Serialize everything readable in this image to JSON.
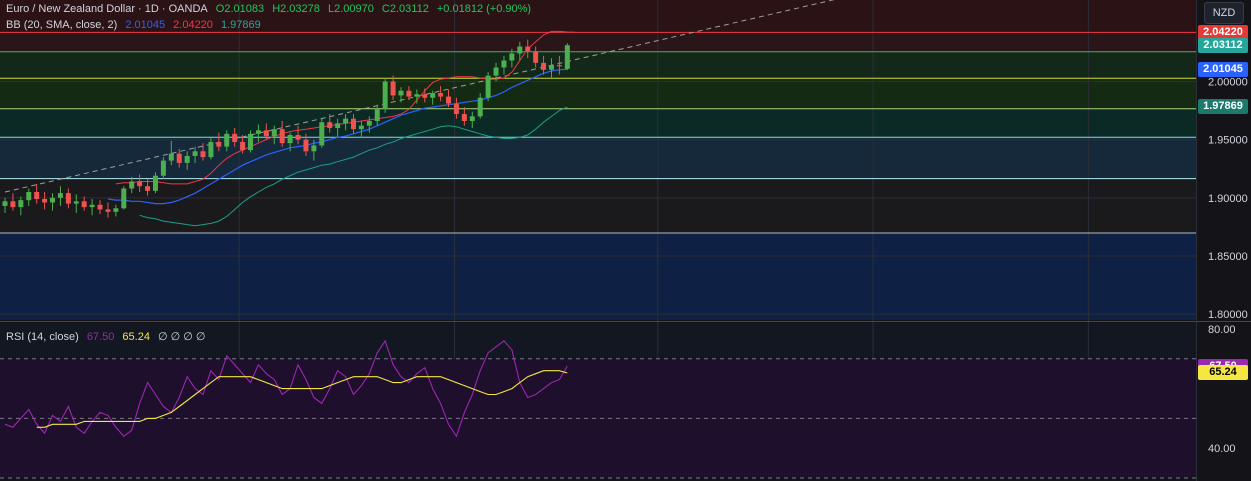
{
  "header": {
    "symbol": "Euro / New Zealand Dollar · 1D · OANDA",
    "open": "O2.01083",
    "high": "H2.03278",
    "low": "L2.00970",
    "close": "C2.03112",
    "change": "+0.01812 (+0.90%)"
  },
  "bb_legend": {
    "label": "BB (20, SMA, close, 2)",
    "basis": "2.01045",
    "upper": "2.04220",
    "lower": "1.97869"
  },
  "rsi_legend": {
    "label": "RSI (14, close)",
    "rsi": "67.50",
    "ma": "65.24",
    "extra": "∅ ∅ ∅ ∅"
  },
  "currency_button": "NZD",
  "price_tags": [
    {
      "text": "2.04220",
      "value": 2.0422,
      "bg": "#e53935",
      "fg": "#ffffff"
    },
    {
      "text": "2.03112",
      "value": 2.03112,
      "bg": "#26a69a",
      "fg": "#ffffff"
    },
    {
      "text": "2.01045",
      "value": 2.01045,
      "bg": "#2962ff",
      "fg": "#ffffff"
    },
    {
      "text": "1.97869",
      "value": 1.97869,
      "bg": "#1b7a6c",
      "fg": "#ffffff"
    }
  ],
  "rsi_tags": [
    {
      "text": "67.50",
      "value": 67.5,
      "bg": "#9c27b0",
      "fg": "#ffffff"
    },
    {
      "text": "65.24",
      "value": 65.24,
      "bg": "#f5e642",
      "fg": "#000000"
    }
  ],
  "chart_data": [
    {
      "type": "candlestick",
      "title": "Euro / New Zealand Dollar · 1D · OANDA",
      "ylim": [
        1.795,
        2.07
      ],
      "y_ticks": [
        "2.00000",
        "1.95000",
        "1.90000",
        "1.85000",
        "1.80000"
      ],
      "y_tick_values": [
        2.0,
        1.95,
        1.9,
        1.85,
        1.8
      ],
      "colors": {
        "up": "#4caf50",
        "down": "#ef5350",
        "bb_basis": "#2962ff",
        "bb_upper": "#f23645",
        "bb_lower": "#1e9e8a"
      },
      "candles": [
        [
          1.893,
          1.9,
          1.887,
          1.897
        ],
        [
          1.897,
          1.904,
          1.889,
          1.892
        ],
        [
          1.892,
          1.901,
          1.885,
          1.898
        ],
        [
          1.898,
          1.908,
          1.893,
          1.905
        ],
        [
          1.905,
          1.912,
          1.895,
          1.899
        ],
        [
          1.899,
          1.905,
          1.89,
          1.896
        ],
        [
          1.896,
          1.904,
          1.889,
          1.9
        ],
        [
          1.9,
          1.91,
          1.893,
          1.904
        ],
        [
          1.904,
          1.908,
          1.891,
          1.895
        ],
        [
          1.895,
          1.903,
          1.887,
          1.897
        ],
        [
          1.897,
          1.901,
          1.889,
          1.892
        ],
        [
          1.892,
          1.899,
          1.885,
          1.894
        ],
        [
          1.894,
          1.898,
          1.886,
          1.89
        ],
        [
          1.89,
          1.896,
          1.883,
          1.888
        ],
        [
          1.888,
          1.894,
          1.884,
          1.891
        ],
        [
          1.891,
          1.91,
          1.89,
          1.908
        ],
        [
          1.908,
          1.918,
          1.904,
          1.914
        ],
        [
          1.914,
          1.92,
          1.905,
          1.91
        ],
        [
          1.91,
          1.916,
          1.902,
          1.906
        ],
        [
          1.906,
          1.922,
          1.904,
          1.919
        ],
        [
          1.919,
          1.935,
          1.916,
          1.932
        ],
        [
          1.932,
          1.949,
          1.928,
          1.938
        ],
        [
          1.938,
          1.942,
          1.926,
          1.93
        ],
        [
          1.93,
          1.94,
          1.924,
          1.936
        ],
        [
          1.936,
          1.944,
          1.93,
          1.94
        ],
        [
          1.94,
          1.947,
          1.932,
          1.935
        ],
        [
          1.935,
          1.952,
          1.933,
          1.948
        ],
        [
          1.948,
          1.956,
          1.94,
          1.944
        ],
        [
          1.944,
          1.958,
          1.94,
          1.955
        ],
        [
          1.955,
          1.96,
          1.944,
          1.948
        ],
        [
          1.948,
          1.954,
          1.938,
          1.941
        ],
        [
          1.941,
          1.958,
          1.939,
          1.955
        ],
        [
          1.955,
          1.963,
          1.948,
          1.958
        ],
        [
          1.958,
          1.964,
          1.95,
          1.953
        ],
        [
          1.953,
          1.962,
          1.946,
          1.959
        ],
        [
          1.959,
          1.966,
          1.944,
          1.947
        ],
        [
          1.947,
          1.956,
          1.94,
          1.954
        ],
        [
          1.954,
          1.962,
          1.946,
          1.95
        ],
        [
          1.95,
          1.955,
          1.936,
          1.94
        ],
        [
          1.94,
          1.95,
          1.932,
          1.945
        ],
        [
          1.945,
          1.968,
          1.943,
          1.965
        ],
        [
          1.965,
          1.972,
          1.956,
          1.96
        ],
        [
          1.96,
          1.968,
          1.952,
          1.964
        ],
        [
          1.964,
          1.972,
          1.958,
          1.968
        ],
        [
          1.968,
          1.972,
          1.955,
          1.959
        ],
        [
          1.959,
          1.966,
          1.952,
          1.962
        ],
        [
          1.962,
          1.97,
          1.956,
          1.966
        ],
        [
          1.966,
          1.98,
          1.962,
          1.976
        ],
        [
          1.976,
          2.003,
          1.973,
          2.0
        ],
        [
          2.0,
          2.005,
          1.984,
          1.988
        ],
        [
          1.988,
          1.995,
          1.982,
          1.992
        ],
        [
          1.992,
          1.996,
          1.984,
          1.987
        ],
        [
          1.987,
          1.993,
          1.981,
          1.989
        ],
        [
          1.989,
          1.994,
          1.982,
          1.986
        ],
        [
          1.986,
          1.992,
          1.98,
          1.99
        ],
        [
          1.99,
          1.996,
          1.983,
          1.987
        ],
        [
          1.987,
          1.993,
          1.978,
          1.981
        ],
        [
          1.981,
          1.986,
          1.968,
          1.972
        ],
        [
          1.972,
          1.978,
          1.962,
          1.966
        ],
        [
          1.966,
          1.974,
          1.96,
          1.97
        ],
        [
          1.97,
          1.99,
          1.968,
          1.986
        ],
        [
          1.986,
          2.008,
          1.983,
          2.005
        ],
        [
          2.005,
          2.016,
          2.0,
          2.012
        ],
        [
          2.012,
          2.022,
          2.006,
          2.018
        ],
        [
          2.018,
          2.028,
          2.012,
          2.024
        ],
        [
          2.024,
          2.034,
          2.018,
          2.03
        ],
        [
          2.03,
          2.036,
          2.02,
          2.026
        ],
        [
          2.026,
          2.03,
          2.012,
          2.016
        ],
        [
          2.016,
          2.022,
          2.006,
          2.01
        ],
        [
          2.01,
          2.02,
          2.002,
          2.014
        ],
        [
          2.014,
          2.022,
          2.006,
          2.013
        ],
        [
          2.01083,
          2.03278,
          2.0097,
          2.03112
        ]
      ],
      "bb_upper": [
        1.912,
        1.913,
        1.913,
        1.914,
        1.914,
        1.914,
        1.913,
        1.912,
        1.912,
        1.912,
        1.914,
        1.916,
        1.921,
        1.928,
        1.934,
        1.938,
        1.941,
        1.944,
        1.947,
        1.95,
        1.953,
        1.955,
        1.957,
        1.958,
        1.959,
        1.96,
        1.961,
        1.962,
        1.963,
        1.964,
        1.965,
        1.966,
        1.967,
        1.968,
        1.969,
        1.97,
        1.972,
        1.976,
        1.984,
        1.992,
        1.999,
        2.002,
        2.003,
        2.004,
        2.004,
        2.004,
        2.003,
        2.002,
        2.002,
        2.003,
        2.008,
        2.018,
        2.028,
        2.034,
        2.04,
        2.043,
        2.043,
        2.0425,
        2.0422
      ],
      "bb_basis": [
        1.899,
        1.898,
        1.898,
        1.897,
        1.897,
        1.896,
        1.895,
        1.895,
        1.896,
        1.898,
        1.901,
        1.904,
        1.908,
        1.912,
        1.916,
        1.92,
        1.924,
        1.928,
        1.931,
        1.934,
        1.937,
        1.939,
        1.941,
        1.943,
        1.944,
        1.945,
        1.947,
        1.948,
        1.95,
        1.952,
        1.953,
        1.955,
        1.957,
        1.959,
        1.962,
        1.965,
        1.968,
        1.971,
        1.973,
        1.975,
        1.977,
        1.978,
        1.979,
        1.98,
        1.981,
        1.982,
        1.983,
        1.984,
        1.986,
        1.988,
        1.991,
        1.995,
        1.998,
        2.001,
        2.004,
        2.007,
        2.009,
        2.01,
        2.01045
      ],
      "bb_lower": [
        1.885,
        1.883,
        1.882,
        1.88,
        1.879,
        1.878,
        1.877,
        1.876,
        1.877,
        1.878,
        1.88,
        1.884,
        1.89,
        1.896,
        1.901,
        1.905,
        1.909,
        1.912,
        1.916,
        1.919,
        1.922,
        1.924,
        1.926,
        1.928,
        1.929,
        1.931,
        1.933,
        1.935,
        1.938,
        1.941,
        1.943,
        1.946,
        1.948,
        1.951,
        1.953,
        1.955,
        1.957,
        1.959,
        1.961,
        1.962,
        1.961,
        1.959,
        1.957,
        1.955,
        1.953,
        1.952,
        1.951,
        1.951,
        1.952,
        1.954,
        1.959,
        1.965,
        1.97,
        1.975,
        1.978
      ],
      "trendline": {
        "from": [
          0,
          1.905
        ],
        "to": [
          95,
          2.055
        ]
      },
      "horizontal_levels": [
        {
          "value": 2.0422,
          "color": "#f23645"
        },
        {
          "value": 2.0255,
          "color": "#4caf50"
        },
        {
          "value": 2.0028,
          "color": "#cddc39"
        },
        {
          "value": 1.9765,
          "color": "#aed581"
        },
        {
          "value": 1.952,
          "color": "#80deea"
        },
        {
          "value": 1.9165,
          "color": "#b2ebf2"
        },
        {
          "value": 1.8698,
          "color": "#b0bec5"
        }
      ]
    },
    {
      "type": "line",
      "title": "RSI (14, close)",
      "ylim": [
        30,
        82
      ],
      "y_ticks": [
        "80.00",
        "40.00"
      ],
      "y_tick_values": [
        80,
        40
      ],
      "bands": [
        70,
        50,
        30
      ],
      "series": [
        {
          "name": "RSI",
          "color": "#9c27b0",
          "values": [
            48,
            47,
            50,
            53,
            48,
            45,
            51,
            49,
            54,
            47,
            45,
            49,
            52,
            51,
            47,
            44,
            46,
            55,
            62,
            58,
            54,
            52,
            57,
            64,
            60,
            58,
            66,
            63,
            71,
            68,
            65,
            62,
            68,
            65,
            63,
            58,
            60,
            68,
            63,
            57,
            55,
            60,
            66,
            64,
            58,
            61,
            65,
            72,
            76,
            68,
            64,
            62,
            65,
            67,
            60,
            55,
            48,
            44,
            52,
            58,
            66,
            72,
            74,
            76,
            73,
            62,
            57,
            58,
            60,
            62,
            63,
            67.5
          ]
        },
        {
          "name": "MA",
          "color": "#f5e642",
          "values": [
            47,
            47,
            48,
            48,
            48,
            48,
            49,
            49,
            49,
            49,
            49,
            49,
            49,
            49,
            50,
            50,
            51,
            52,
            54,
            56,
            58,
            60,
            62,
            64,
            64,
            64,
            64,
            64,
            63,
            62,
            61,
            60,
            60,
            60,
            60,
            60,
            60,
            61,
            62,
            63,
            64,
            64,
            64,
            64,
            63,
            62,
            62,
            63,
            64,
            64,
            64,
            64,
            63,
            62,
            61,
            60,
            59,
            58,
            58,
            59,
            60,
            62,
            64,
            65,
            66,
            66,
            66,
            65.24
          ]
        }
      ]
    }
  ]
}
